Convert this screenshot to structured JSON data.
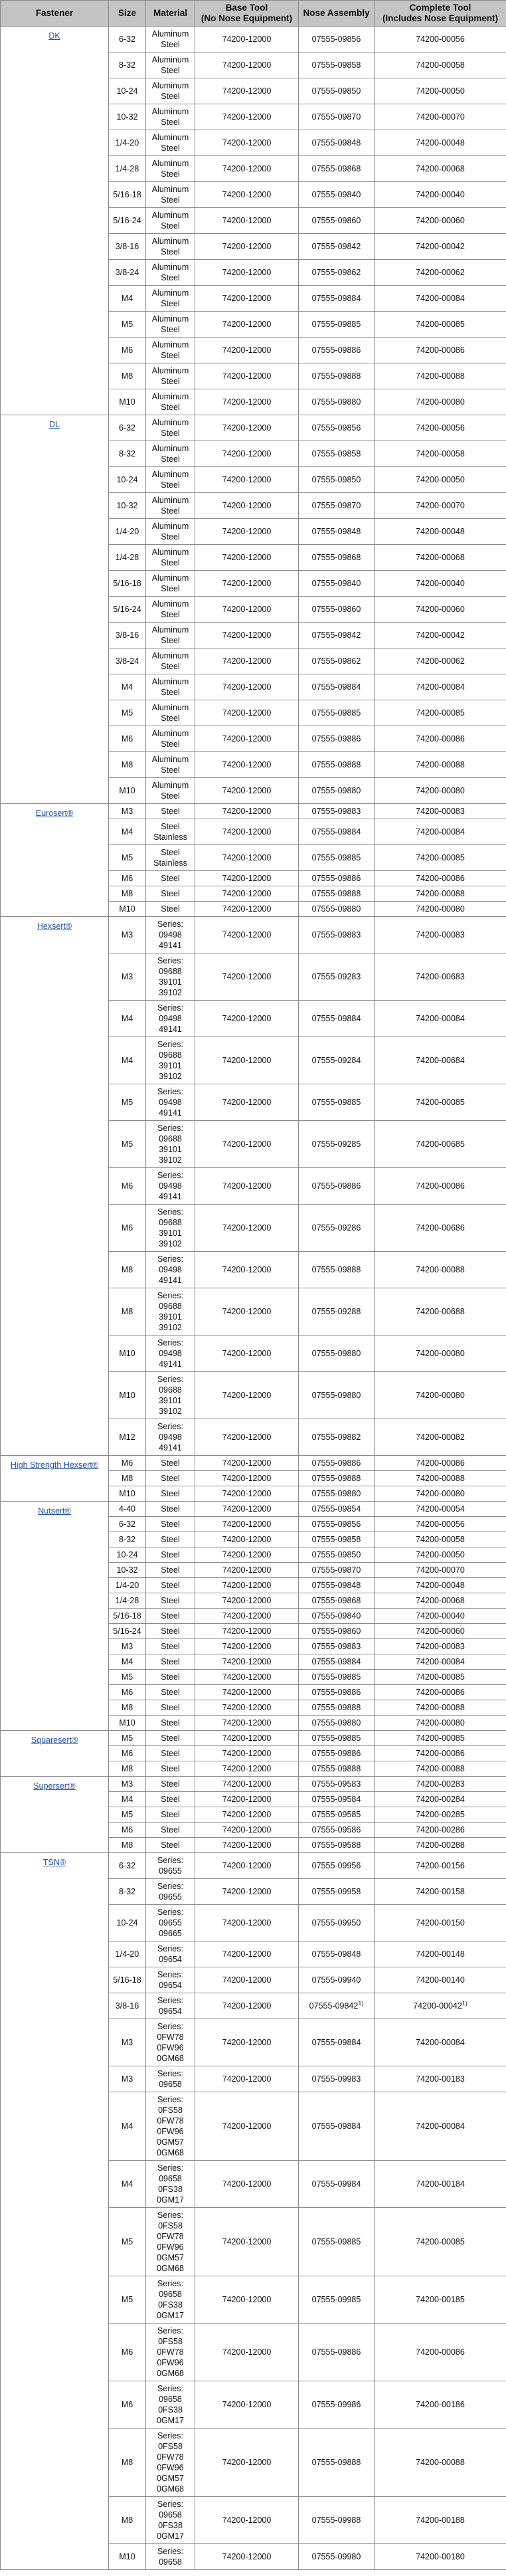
{
  "headers": {
    "fastener": "Fastener",
    "size": "Size",
    "material": "Material",
    "base_tool_1": "Base Tool",
    "base_tool_2": "(No Nose Equipment)",
    "nose": "Nose Assembly",
    "complete_1": "Complete Tool",
    "complete_2": "(Includes Nose Equipment)"
  },
  "colors": {
    "header_bg": "#c4c4c4",
    "link": "#1f4fa8",
    "border": "#8a8a8a"
  },
  "groups": [
    {
      "fastener": "DK",
      "rows": [
        {
          "size": "6-32",
          "material": "Aluminum\nSteel",
          "base": "74200-12000",
          "nose": "07555-09856",
          "complete": "74200-00056"
        },
        {
          "size": "8-32",
          "material": "Aluminum\nSteel",
          "base": "74200-12000",
          "nose": "07555-09858",
          "complete": "74200-00058"
        },
        {
          "size": "10-24",
          "material": "Aluminum\nSteel",
          "base": "74200-12000",
          "nose": "07555-09850",
          "complete": "74200-00050"
        },
        {
          "size": "10-32",
          "material": "Aluminum\nSteel",
          "base": "74200-12000",
          "nose": "07555-09870",
          "complete": "74200-00070"
        },
        {
          "size": "1/4-20",
          "material": "Aluminum\nSteel",
          "base": "74200-12000",
          "nose": "07555-09848",
          "complete": "74200-00048"
        },
        {
          "size": "1/4-28",
          "material": "Aluminum\nSteel",
          "base": "74200-12000",
          "nose": "07555-09868",
          "complete": "74200-00068"
        },
        {
          "size": "5/16-18",
          "material": "Aluminum\nSteel",
          "base": "74200-12000",
          "nose": "07555-09840",
          "complete": "74200-00040"
        },
        {
          "size": "5/16-24",
          "material": "Aluminum\nSteel",
          "base": "74200-12000",
          "nose": "07555-09860",
          "complete": "74200-00060"
        },
        {
          "size": "3/8-16",
          "material": "Aluminum\nSteel",
          "base": "74200-12000",
          "nose": "07555-09842",
          "complete": "74200-00042"
        },
        {
          "size": "3/8-24",
          "material": "Aluminum\nSteel",
          "base": "74200-12000",
          "nose": "07555-09862",
          "complete": "74200-00062"
        },
        {
          "size": "M4",
          "material": "Aluminum\nSteel",
          "base": "74200-12000",
          "nose": "07555-09884",
          "complete": "74200-00084"
        },
        {
          "size": "M5",
          "material": "Aluminum\nSteel",
          "base": "74200-12000",
          "nose": "07555-09885",
          "complete": "74200-00085"
        },
        {
          "size": "M6",
          "material": "Aluminum\nSteel",
          "base": "74200-12000",
          "nose": "07555-09886",
          "complete": "74200-00086"
        },
        {
          "size": "M8",
          "material": "Aluminum\nSteel",
          "base": "74200-12000",
          "nose": "07555-09888",
          "complete": "74200-00088"
        },
        {
          "size": "M10",
          "material": "Aluminum\nSteel",
          "base": "74200-12000",
          "nose": "07555-09880",
          "complete": "74200-00080"
        }
      ]
    },
    {
      "fastener": "DL",
      "rows": [
        {
          "size": "6-32",
          "material": "Aluminum\nSteel",
          "base": "74200-12000",
          "nose": "07555-09856",
          "complete": "74200-00056"
        },
        {
          "size": "8-32",
          "material": "Aluminum\nSteel",
          "base": "74200-12000",
          "nose": "07555-09858",
          "complete": "74200-00058"
        },
        {
          "size": "10-24",
          "material": "Aluminum\nSteel",
          "base": "74200-12000",
          "nose": "07555-09850",
          "complete": "74200-00050"
        },
        {
          "size": "10-32",
          "material": "Aluminum\nSteel",
          "base": "74200-12000",
          "nose": "07555-09870",
          "complete": "74200-00070"
        },
        {
          "size": "1/4-20",
          "material": "Aluminum\nSteel",
          "base": "74200-12000",
          "nose": "07555-09848",
          "complete": "74200-00048"
        },
        {
          "size": "1/4-28",
          "material": "Aluminum\nSteel",
          "base": "74200-12000",
          "nose": "07555-09868",
          "complete": "74200-00068"
        },
        {
          "size": "5/16-18",
          "material": "Aluminum\nSteel",
          "base": "74200-12000",
          "nose": "07555-09840",
          "complete": "74200-00040"
        },
        {
          "size": "5/16-24",
          "material": "Aluminum\nSteel",
          "base": "74200-12000",
          "nose": "07555-09860",
          "complete": "74200-00060"
        },
        {
          "size": "3/8-16",
          "material": "Aluminum\nSteel",
          "base": "74200-12000",
          "nose": "07555-09842",
          "complete": "74200-00042"
        },
        {
          "size": "3/8-24",
          "material": "Aluminum\nSteel",
          "base": "74200-12000",
          "nose": "07555-09862",
          "complete": "74200-00062"
        },
        {
          "size": "M4",
          "material": "Aluminum\nSteel",
          "base": "74200-12000",
          "nose": "07555-09884",
          "complete": "74200-00084"
        },
        {
          "size": "M5",
          "material": "Aluminum\nSteel",
          "base": "74200-12000",
          "nose": "07555-09885",
          "complete": "74200-00085"
        },
        {
          "size": "M6",
          "material": "Aluminum\nSteel",
          "base": "74200-12000",
          "nose": "07555-09886",
          "complete": "74200-00086"
        },
        {
          "size": "M8",
          "material": "Aluminum\nSteel",
          "base": "74200-12000",
          "nose": "07555-09888",
          "complete": "74200-00088"
        },
        {
          "size": "M10",
          "material": "Aluminum\nSteel",
          "base": "74200-12000",
          "nose": "07555-09880",
          "complete": "74200-00080"
        }
      ]
    },
    {
      "fastener": "Eurosert®",
      "rows": [
        {
          "size": "M3",
          "material": "Steel",
          "base": "74200-12000",
          "nose": "07555-09883",
          "complete": "74200-00083"
        },
        {
          "size": "M4",
          "material": "Steel\nStainless",
          "base": "74200-12000",
          "nose": "07555-09884",
          "complete": "74200-00084"
        },
        {
          "size": "M5",
          "material": "Steel\nStainless",
          "base": "74200-12000",
          "nose": "07555-09885",
          "complete": "74200-00085"
        },
        {
          "size": "M6",
          "material": "Steel",
          "base": "74200-12000",
          "nose": "07555-09886",
          "complete": "74200-00086"
        },
        {
          "size": "M8",
          "material": "Steel",
          "base": "74200-12000",
          "nose": "07555-09888",
          "complete": "74200-00088"
        },
        {
          "size": "M10",
          "material": "Steel",
          "base": "74200-12000",
          "nose": "07555-09880",
          "complete": "74200-00080"
        }
      ]
    },
    {
      "fastener": "Hexsert®",
      "rows": [
        {
          "size": "M3",
          "material": "Series:\n09498\n49141",
          "base": "74200-12000",
          "nose": "07555-09883",
          "complete": "74200-00083"
        },
        {
          "size": "M3",
          "material": "Series:\n09688\n39101\n39102",
          "base": "74200-12000",
          "nose": "07555-09283",
          "complete": "74200-00683"
        },
        {
          "size": "M4",
          "material": "Series:\n09498\n49141",
          "base": "74200-12000",
          "nose": "07555-09884",
          "complete": "74200-00084"
        },
        {
          "size": "M4",
          "material": "Series:\n09688\n39101\n39102",
          "base": "74200-12000",
          "nose": "07555-09284",
          "complete": "74200-00684"
        },
        {
          "size": "M5",
          "material": "Series:\n09498\n49141",
          "base": "74200-12000",
          "nose": "07555-09885",
          "complete": "74200-00085"
        },
        {
          "size": "M5",
          "material": "Series:\n09688\n39101\n39102",
          "base": "74200-12000",
          "nose": "07555-09285",
          "complete": "74200-00685"
        },
        {
          "size": "M6",
          "material": "Series:\n09498\n49141",
          "base": "74200-12000",
          "nose": "07555-09886",
          "complete": "74200-00086"
        },
        {
          "size": "M6",
          "material": "Series:\n09688\n39101\n39102",
          "base": "74200-12000",
          "nose": "07555-09286",
          "complete": "74200-00686"
        },
        {
          "size": "M8",
          "material": "Series:\n09498\n49141",
          "base": "74200-12000",
          "nose": "07555-09888",
          "complete": "74200-00088"
        },
        {
          "size": "M8",
          "material": "Series:\n09688\n39101\n39102",
          "base": "74200-12000",
          "nose": "07555-09288",
          "complete": "74200-00688"
        },
        {
          "size": "M10",
          "material": "Series:\n09498\n49141",
          "base": "74200-12000",
          "nose": "07555-09880",
          "complete": "74200-00080"
        },
        {
          "size": "M10",
          "material": "Series:\n09688\n39101\n39102",
          "base": "74200-12000",
          "nose": "07555-09880",
          "complete": "74200-00080"
        },
        {
          "size": "M12",
          "material": "Series:\n09498\n49141",
          "base": "74200-12000",
          "nose": "07555-09882",
          "complete": "74200-00082"
        }
      ]
    },
    {
      "fastener": "High Strength Hexsert®",
      "rows": [
        {
          "size": "M6",
          "material": "Steel",
          "base": "74200-12000",
          "nose": "07555-09886",
          "complete": "74200-00086"
        },
        {
          "size": "M8",
          "material": "Steel",
          "base": "74200-12000",
          "nose": "07555-09888",
          "complete": "74200-00088"
        },
        {
          "size": "M10",
          "material": "Steel",
          "base": "74200-12000",
          "nose": "07555-09880",
          "complete": "74200-00080"
        }
      ]
    },
    {
      "fastener": "Nutsert®",
      "rows": [
        {
          "size": "4-40",
          "material": "Steel",
          "base": "74200-12000",
          "nose": "07555-09854",
          "complete": "74200-00054"
        },
        {
          "size": "6-32",
          "material": "Steel",
          "base": "74200-12000",
          "nose": "07555-09856",
          "complete": "74200-00056"
        },
        {
          "size": "8-32",
          "material": "Steel",
          "base": "74200-12000",
          "nose": "07555-09858",
          "complete": "74200-00058"
        },
        {
          "size": "10-24",
          "material": "Steel",
          "base": "74200-12000",
          "nose": "07555-09850",
          "complete": "74200-00050"
        },
        {
          "size": "10-32",
          "material": "Steel",
          "base": "74200-12000",
          "nose": "07555-09870",
          "complete": "74200-00070"
        },
        {
          "size": "1/4-20",
          "material": "Steel",
          "base": "74200-12000",
          "nose": "07555-09848",
          "complete": "74200-00048"
        },
        {
          "size": "1/4-28",
          "material": "Steel",
          "base": "74200-12000",
          "nose": "07555-09868",
          "complete": "74200-00068"
        },
        {
          "size": "5/16-18",
          "material": "Steel",
          "base": "74200-12000",
          "nose": "07555-09840",
          "complete": "74200-00040"
        },
        {
          "size": "5/16-24",
          "material": "Steel",
          "base": "74200-12000",
          "nose": "07555-09860",
          "complete": "74200-00060"
        },
        {
          "size": "M3",
          "material": "Steel",
          "base": "74200-12000",
          "nose": "07555-09883",
          "complete": "74200-00083"
        },
        {
          "size": "M4",
          "material": "Steel",
          "base": "74200-12000",
          "nose": "07555-09884",
          "complete": "74200-00084"
        },
        {
          "size": "M5",
          "material": "Steel",
          "base": "74200-12000",
          "nose": "07555-09885",
          "complete": "74200-00085"
        },
        {
          "size": "M6",
          "material": "Steel",
          "base": "74200-12000",
          "nose": "07555-09886",
          "complete": "74200-00086"
        },
        {
          "size": "M8",
          "material": "Steel",
          "base": "74200-12000",
          "nose": "07555-09888",
          "complete": "74200-00088"
        },
        {
          "size": "M10",
          "material": "Steel",
          "base": "74200-12000",
          "nose": "07555-09880",
          "complete": "74200-00080"
        }
      ]
    },
    {
      "fastener": "Squaresert®",
      "rows": [
        {
          "size": "M5",
          "material": "Steel",
          "base": "74200-12000",
          "nose": "07555-09885",
          "complete": "74200-00085"
        },
        {
          "size": "M6",
          "material": "Steel",
          "base": "74200-12000",
          "nose": "07555-09886",
          "complete": "74200-00086"
        },
        {
          "size": "M8",
          "material": "Steel",
          "base": "74200-12000",
          "nose": "07555-09888",
          "complete": "74200-00088"
        }
      ]
    },
    {
      "fastener": "Supersert®",
      "rows": [
        {
          "size": "M3",
          "material": "Steel",
          "base": "74200-12000",
          "nose": "07555-09583",
          "complete": "74200-00283"
        },
        {
          "size": "M4",
          "material": "Steel",
          "base": "74200-12000",
          "nose": "07555-09584",
          "complete": "74200-00284"
        },
        {
          "size": "M5",
          "material": "Steel",
          "base": "74200-12000",
          "nose": "07555-09585",
          "complete": "74200-00285"
        },
        {
          "size": "M6",
          "material": "Steel",
          "base": "74200-12000",
          "nose": "07555-09586",
          "complete": "74200-00286"
        },
        {
          "size": "M8",
          "material": "Steel",
          "base": "74200-12000",
          "nose": "07555-09588",
          "complete": "74200-00288"
        }
      ]
    },
    {
      "fastener": "TSN®",
      "rows": [
        {
          "size": "6-32",
          "material": "Series:\n09655",
          "base": "74200-12000",
          "nose": "07555-09956",
          "complete": "74200-00156"
        },
        {
          "size": "8-32",
          "material": "Series:\n09655",
          "base": "74200-12000",
          "nose": "07555-09958",
          "complete": "74200-00158"
        },
        {
          "size": "10-24",
          "material": "Series:\n09655\n09665",
          "base": "74200-12000",
          "nose": "07555-09950",
          "complete": "74200-00150"
        },
        {
          "size": "1/4-20",
          "material": "Series:\n09654",
          "base": "74200-12000",
          "nose": "07555-09848",
          "complete": "74200-00148"
        },
        {
          "size": "5/16-18",
          "material": "Series:\n09654",
          "base": "74200-12000",
          "nose": "07555-09940",
          "complete": "74200-00140"
        },
        {
          "size": "3/8-16",
          "material": "Series:\n09654",
          "base": "74200-12000",
          "nose": "07555-09842",
          "nose_note": "1)",
          "complete": "74200-00042",
          "complete_note": "1)"
        },
        {
          "size": "M3",
          "material": "Series:\n0FW78\n0FW96\n0GM68",
          "base": "74200-12000",
          "nose": "07555-09884",
          "complete": "74200-00084"
        },
        {
          "size": "M3",
          "material": "Series:\n09658",
          "base": "74200-12000",
          "nose": "07555-09983",
          "complete": "74200-00183"
        },
        {
          "size": "M4",
          "material": "Series:\n0FS58\n0FW78\n0FW96\n0GM57\n0GM68",
          "base": "74200-12000",
          "nose": "07555-09884",
          "complete": "74200-00084"
        },
        {
          "size": "M4",
          "material": "Series:\n09658\n0FS38\n0GM17",
          "base": "74200-12000",
          "nose": "07555-09984",
          "complete": "74200-00184"
        },
        {
          "size": "M5",
          "material": "Series:\n0FS58\n0FW78\n0FW96\n0GM57\n0GM68",
          "base": "74200-12000",
          "nose": "07555-09885",
          "complete": "74200-00085"
        },
        {
          "size": "M5",
          "material": "Series:\n09658\n0FS38\n0GM17",
          "base": "74200-12000",
          "nose": "07555-09985",
          "complete": "74200-00185"
        },
        {
          "size": "M6",
          "material": "Series:\n0FS58\n0FW78\n0FW96\n0GM68",
          "base": "74200-12000",
          "nose": "07555-09886",
          "complete": "74200-00086"
        },
        {
          "size": "M6",
          "material": "Series:\n09658\n0FS38\n0GM17",
          "base": "74200-12000",
          "nose": "07555-09986",
          "complete": "74200-00186"
        },
        {
          "size": "M8",
          "material": "Series:\n0FS58\n0FW78\n0FW96\n0GM57\n0GM68",
          "base": "74200-12000",
          "nose": "07555-09888",
          "complete": "74200-00088"
        },
        {
          "size": "M8",
          "material": "Series:\n09658\n0FS38\n0GM17",
          "base": "74200-12000",
          "nose": "07555-09988",
          "complete": "74200-00188"
        },
        {
          "size": "M10",
          "material": "Series:\n09658",
          "base": "74200-12000",
          "nose": "07555-09980",
          "complete": "74200-00180"
        }
      ]
    }
  ]
}
